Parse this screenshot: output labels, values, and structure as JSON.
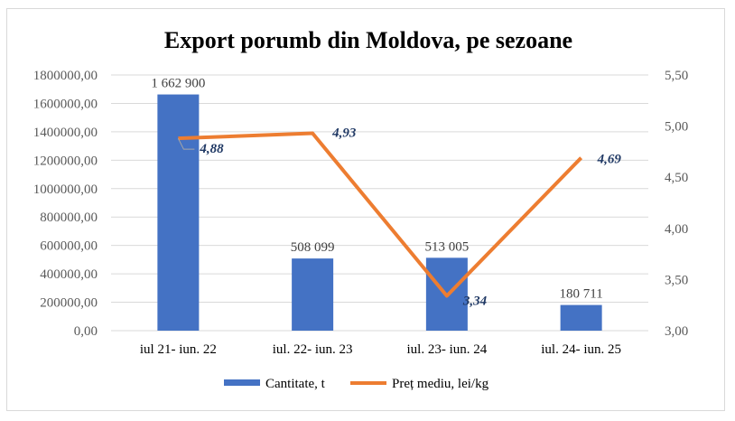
{
  "chart_data": {
    "type": "bar",
    "title": "Export porumb din Moldova, pe sezoane",
    "categories": [
      "iul 21- iun. 22",
      "iul. 22- iun. 23",
      "iul. 23- iun. 24",
      "iul. 24- iun. 25"
    ],
    "series": [
      {
        "name": "Cantitate, t",
        "type": "bar",
        "axis": "left",
        "color": "#4472c4",
        "values": [
          1662900,
          508099,
          513005,
          180711
        ],
        "labels": [
          "1 662 900",
          "508 099",
          "513 005",
          "180 711"
        ]
      },
      {
        "name": "Preț mediu, lei/kg",
        "type": "line",
        "axis": "right",
        "color": "#ed7d31",
        "values": [
          4.88,
          4.93,
          3.34,
          4.69
        ],
        "labels": [
          "4,88",
          "4,93",
          "3,34",
          "4,69"
        ]
      }
    ],
    "y_left": {
      "lim": [
        0,
        1800000
      ],
      "ticks": [
        "0,00",
        "200000,00",
        "400000,00",
        "600000,00",
        "800000,00",
        "1000000,00",
        "1200000,00",
        "1400000,00",
        "1600000,00",
        "1800000,00"
      ]
    },
    "y_right": {
      "lim": [
        3.0,
        5.5
      ],
      "ticks": [
        "3,00",
        "3,50",
        "4,00",
        "4,50",
        "5,00",
        "5,50"
      ]
    },
    "grid": true,
    "legend": "bottom"
  }
}
